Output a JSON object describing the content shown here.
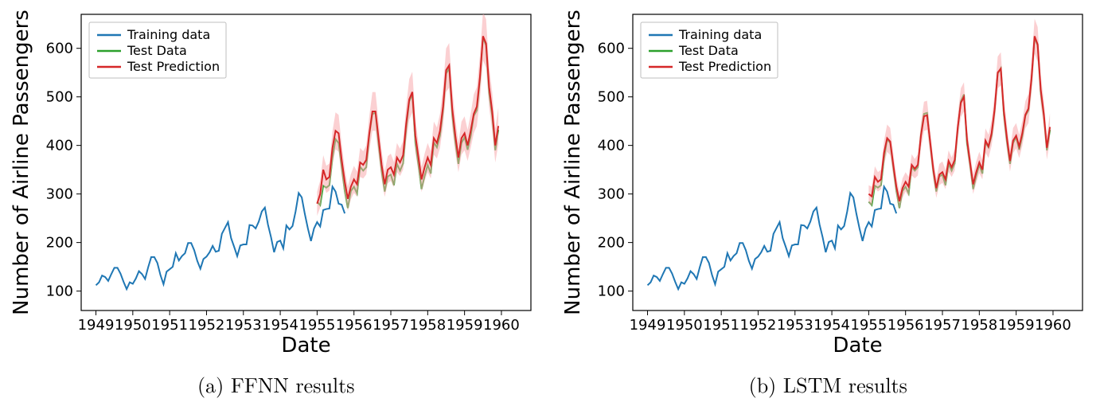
{
  "colors": {
    "training": "#1f77b4",
    "test": "#2ca02c",
    "prediction": "#d62728",
    "band": "#f8a9ad",
    "axis": "#000000",
    "bg": "#ffffff",
    "legend_border": "#bfbfbf"
  },
  "typography": {
    "axis_label_fontsize": 26,
    "tick_fontsize": 18,
    "legend_fontsize": 16,
    "caption_fontsize": 26
  },
  "line_widths": {
    "series": 2,
    "axis": 1.2
  },
  "panels": [
    {
      "id": "ffnn",
      "caption": "(a) FFNN results",
      "xlabel": "Date",
      "ylabel": "Number of Airline Passengers",
      "xlim": [
        1948.6,
        1960.8
      ],
      "ylim": [
        60,
        670
      ],
      "xticks": [
        1949,
        1950,
        1951,
        1952,
        1953,
        1954,
        1955,
        1956,
        1957,
        1958,
        1959,
        1960
      ],
      "yticks": [
        100,
        200,
        300,
        400,
        500,
        600
      ],
      "legend": [
        "Training data",
        "Test Data",
        "Test Prediction"
      ]
    },
    {
      "id": "lstm",
      "caption": "(b) LSTM results",
      "xlabel": "Date",
      "ylabel": "Number of Airline Passengers",
      "xlim": [
        1948.6,
        1960.8
      ],
      "ylim": [
        60,
        670
      ],
      "xticks": [
        1949,
        1950,
        1951,
        1952,
        1953,
        1954,
        1955,
        1956,
        1957,
        1958,
        1959,
        1960
      ],
      "yticks": [
        100,
        200,
        300,
        400,
        500,
        600
      ],
      "legend": [
        "Training data",
        "Test Data",
        "Test Prediction"
      ]
    }
  ],
  "series": {
    "training_x_start": 1949.0,
    "training_y": [
      112,
      118,
      132,
      129,
      121,
      135,
      148,
      148,
      136,
      119,
      104,
      118,
      115,
      126,
      141,
      135,
      125,
      149,
      170,
      170,
      158,
      133,
      114,
      140,
      145,
      150,
      178,
      163,
      172,
      178,
      199,
      199,
      184,
      162,
      146,
      166,
      171,
      180,
      193,
      181,
      183,
      218,
      230,
      242,
      209,
      191,
      172,
      194,
      196,
      196,
      236,
      235,
      229,
      243,
      264,
      272,
      237,
      211,
      180,
      201,
      204,
      188,
      235,
      227,
      234,
      264,
      302,
      293,
      259,
      229,
      203,
      229,
      242,
      233,
      267,
      269,
      270,
      315,
      305,
      280,
      278,
      260
    ],
    "test_x_start": 1955.0,
    "test_y": [
      284,
      277,
      317,
      313,
      318,
      374,
      413,
      405,
      355,
      306,
      271,
      306,
      315,
      301,
      356,
      348,
      355,
      422,
      465,
      467,
      404,
      347,
      305,
      336,
      340,
      318,
      362,
      348,
      363,
      435,
      491,
      505,
      404,
      359,
      310,
      337,
      360,
      342,
      406,
      396,
      420,
      472,
      548,
      559,
      463,
      407,
      362,
      405,
      417,
      391,
      419,
      461,
      472,
      535,
      622,
      606,
      508,
      461,
      390,
      432
    ],
    "ffnn_prediction": {
      "x_start": 1955.0,
      "mean": [
        280,
        300,
        350,
        330,
        335,
        395,
        430,
        425,
        370,
        325,
        290,
        315,
        330,
        320,
        365,
        360,
        370,
        425,
        470,
        470,
        415,
        360,
        320,
        350,
        355,
        340,
        375,
        365,
        380,
        445,
        495,
        510,
        420,
        375,
        330,
        355,
        375,
        360,
        415,
        405,
        430,
        480,
        555,
        565,
        475,
        420,
        375,
        415,
        425,
        400,
        430,
        465,
        480,
        540,
        625,
        610,
        520,
        470,
        400,
        440
      ],
      "band_half": [
        25,
        28,
        30,
        28,
        28,
        34,
        38,
        38,
        33,
        27,
        25,
        26,
        28,
        26,
        30,
        28,
        30,
        36,
        40,
        40,
        35,
        30,
        26,
        28,
        28,
        26,
        30,
        28,
        30,
        36,
        42,
        42,
        35,
        30,
        26,
        28,
        30,
        28,
        34,
        32,
        35,
        40,
        45,
        46,
        40,
        35,
        30,
        34,
        35,
        32,
        35,
        40,
        40,
        45,
        50,
        50,
        42,
        40,
        35,
        38
      ]
    },
    "lstm_prediction": {
      "x_start": 1955.0,
      "mean": [
        300,
        295,
        335,
        325,
        330,
        385,
        415,
        408,
        360,
        315,
        285,
        312,
        325,
        315,
        360,
        352,
        360,
        420,
        460,
        462,
        408,
        352,
        312,
        340,
        345,
        330,
        368,
        355,
        370,
        438,
        488,
        500,
        412,
        365,
        320,
        345,
        365,
        350,
        410,
        398,
        425,
        475,
        550,
        558,
        470,
        415,
        368,
        410,
        420,
        398,
        425,
        463,
        476,
        538,
        625,
        608,
        515,
        465,
        395,
        438
      ],
      "band_half": [
        18,
        20,
        22,
        20,
        20,
        25,
        28,
        28,
        24,
        20,
        18,
        20,
        20,
        20,
        22,
        20,
        22,
        26,
        30,
        30,
        25,
        22,
        20,
        22,
        22,
        20,
        22,
        20,
        22,
        26,
        30,
        30,
        24,
        22,
        20,
        22,
        22,
        20,
        25,
        24,
        26,
        30,
        33,
        34,
        28,
        26,
        22,
        26,
        26,
        24,
        26,
        28,
        30,
        33,
        36,
        36,
        30,
        28,
        24,
        28
      ]
    }
  }
}
